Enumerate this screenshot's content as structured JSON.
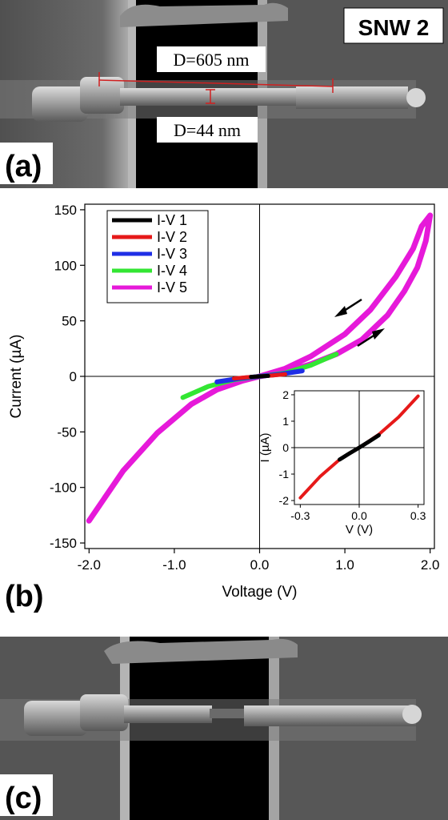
{
  "sample_label": "SNW 2",
  "panel_a": {
    "letter": "(a)",
    "length_label": "D=605  nm",
    "diameter_label": "D=44  nm"
  },
  "panel_b": {
    "letter": "(b)"
  },
  "panel_c": {
    "letter": "(c)"
  },
  "colors": {
    "background_sem": "#3f3f3f",
    "gap": "#000000",
    "measure_line": "#d02020"
  },
  "chart_data": [
    {
      "type": "line",
      "xlabel": "Voltage (V)",
      "ylabel": "Current (µA)",
      "xlim": [
        -2.05,
        2.05
      ],
      "ylim": [
        -155,
        155
      ],
      "xticks": [
        -2.0,
        -1.0,
        0.0,
        1.0,
        2.0
      ],
      "xtick_labels": [
        "-2.0",
        "-1.0",
        "0.0",
        "1.0",
        "2.0"
      ],
      "yticks": [
        -150,
        -100,
        -50,
        0,
        50,
        100,
        150
      ],
      "ytick_labels": [
        "-150",
        "-100",
        "-50",
        "0",
        "50",
        "100",
        "150"
      ],
      "zero_lines": true,
      "legend_position": "top-left",
      "series": [
        {
          "name": "I-V 5",
          "color": "#e619d9",
          "x": [
            -2.0,
            -1.6,
            -1.2,
            -0.8,
            -0.5,
            -0.2,
            0.0,
            0.3,
            0.6,
            0.9,
            1.2,
            1.5,
            1.7,
            1.85,
            1.95,
            2.0,
            1.9,
            1.8,
            1.6,
            1.3,
            1.0,
            0.6,
            0.3,
            0.0
          ],
          "y": [
            -130,
            -85,
            -51,
            -25,
            -12,
            -4,
            0,
            4,
            11,
            20,
            33,
            55,
            77,
            98,
            122,
            145,
            135,
            115,
            90,
            60,
            38,
            18,
            7,
            0
          ]
        },
        {
          "name": "I-V 4",
          "color": "#33e633",
          "x": [
            -0.9,
            -0.6,
            -0.3,
            0.0,
            0.3,
            0.6,
            0.9
          ],
          "y": [
            -19,
            -9,
            -3,
            0,
            3,
            10,
            20
          ]
        },
        {
          "name": "I-V 3",
          "color": "#1f2ee6",
          "x": [
            -0.5,
            -0.25,
            0.0,
            0.25,
            0.5
          ],
          "y": [
            -5,
            -2,
            0,
            2,
            5
          ]
        },
        {
          "name": "I-V 2",
          "color": "#e61919",
          "x": [
            -0.3,
            -0.15,
            0.0,
            0.15,
            0.3
          ],
          "y": [
            -1.9,
            -0.8,
            0,
            0.8,
            1.9
          ]
        },
        {
          "name": "I-V 1",
          "color": "#000000",
          "x": [
            -0.1,
            0.0,
            0.1
          ],
          "y": [
            -0.45,
            0,
            0.45
          ]
        }
      ],
      "legend": [
        "I-V 1",
        "I-V 2",
        "I-V 3",
        "I-V 4",
        "I-V 5"
      ],
      "annotations": [
        {
          "type": "arrow",
          "direction": "down-left",
          "meaning": "downward sweep"
        },
        {
          "type": "arrow",
          "direction": "up-right",
          "meaning": "upward sweep"
        }
      ]
    },
    {
      "type": "line",
      "role": "inset",
      "xlabel": "V (V)",
      "ylabel": "I (µA)",
      "xlim": [
        -0.33,
        0.33
      ],
      "ylim": [
        -2.15,
        2.15
      ],
      "xticks": [
        -0.3,
        0.0,
        0.3
      ],
      "xtick_labels": [
        "-0.3",
        "0.0",
        "0.3"
      ],
      "yticks": [
        -2,
        -1,
        0,
        1,
        2
      ],
      "ytick_labels": [
        "-2",
        "-1",
        "0",
        "1",
        "2"
      ],
      "zero_lines": true,
      "series": [
        {
          "name": "I-V 2",
          "color": "#e61919",
          "x": [
            -0.3,
            -0.2,
            -0.1,
            0.0,
            0.1,
            0.2,
            0.3
          ],
          "y": [
            -1.9,
            -1.1,
            -0.45,
            0,
            0.5,
            1.15,
            1.95
          ]
        },
        {
          "name": "I-V 1",
          "color": "#000000",
          "x": [
            -0.1,
            -0.05,
            0.0,
            0.05,
            0.1
          ],
          "y": [
            -0.45,
            -0.22,
            0,
            0.23,
            0.47
          ]
        }
      ]
    }
  ]
}
